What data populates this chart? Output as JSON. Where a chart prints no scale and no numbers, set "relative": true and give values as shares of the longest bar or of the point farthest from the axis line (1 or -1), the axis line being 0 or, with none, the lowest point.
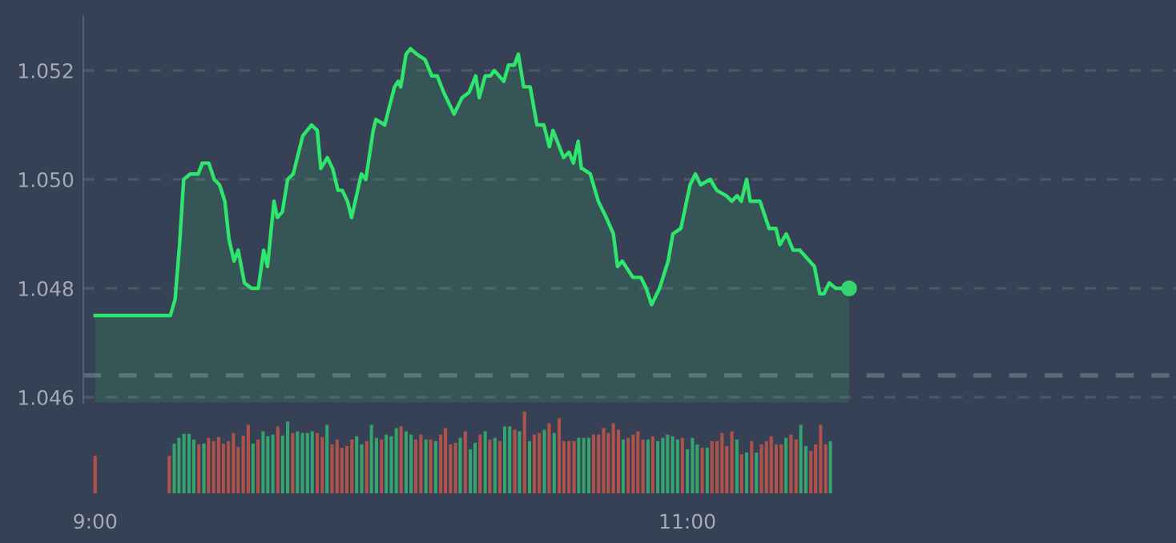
{
  "chart_data": [
    {
      "type": "area",
      "xlim": [
        8.96,
        12.65
      ],
      "ylim": [
        1.0459,
        1.053
      ],
      "yticks": [
        1.046,
        1.048,
        {
          "value": 1.05,
          "label": "1.050"
        },
        1.052
      ],
      "grid": "y",
      "tick_labels": "y",
      "line_style": "solid",
      "ref_lines": [
        {
          "axis": "y",
          "value": 1.0464,
          "line_style": "dashed",
          "color": "#5f6878"
        }
      ],
      "series": [
        {
          "type": "area",
          "color": "#2ee66b",
          "marker": "none",
          "x": [
            9.0,
            9.254,
            9.27,
            9.285,
            9.299,
            9.321,
            9.348,
            9.362,
            9.384,
            9.402,
            9.42,
            9.438,
            9.452,
            9.469,
            9.483,
            9.504,
            9.528,
            9.551,
            9.569,
            9.582,
            9.604,
            9.615,
            9.632,
            9.65,
            9.669,
            9.701,
            9.731,
            9.75,
            9.762,
            9.784,
            9.802,
            9.82,
            9.834,
            9.852,
            9.866,
            9.899,
            9.914,
            9.939,
            9.948,
            9.978,
            10.011,
            10.023,
            10.032,
            10.05,
            10.065,
            10.086,
            10.114,
            10.137,
            10.155,
            10.177,
            10.212,
            10.239,
            10.263,
            10.285,
            10.297,
            10.317,
            10.335,
            10.348,
            10.38,
            10.396,
            10.416,
            10.429,
            10.447,
            10.469,
            10.492,
            10.515,
            10.534,
            10.546,
            10.582,
            10.6,
            10.615,
            10.631,
            10.642,
            10.645,
            10.672,
            10.699,
            10.726,
            10.75,
            10.764,
            10.78,
            10.816,
            10.843,
            10.861,
            10.879,
            10.906,
            10.935,
            10.951,
            10.978,
            11.009,
            11.027,
            11.045,
            11.077,
            11.099,
            11.131,
            11.15,
            11.168,
            11.182,
            11.2,
            11.212,
            11.245,
            11.276,
            11.299,
            11.312,
            11.334,
            11.357,
            11.38,
            11.429,
            11.447,
            11.461,
            11.479,
            11.501,
            11.546
          ],
          "values": [
            1.0475,
            1.0475,
            1.0478,
            1.0488,
            1.05,
            1.0501,
            1.0501,
            1.0503,
            1.0503,
            1.05,
            1.0499,
            1.0496,
            1.0489,
            1.0485,
            1.0487,
            1.0481,
            1.048,
            1.048,
            1.0487,
            1.0484,
            1.0496,
            1.0493,
            1.0494,
            1.05,
            1.0501,
            1.0508,
            1.051,
            1.0509,
            1.0502,
            1.0504,
            1.0502,
            1.0498,
            1.0498,
            1.0496,
            1.0493,
            1.0501,
            1.05,
            1.0509,
            1.0511,
            1.051,
            1.0517,
            1.0518,
            1.0517,
            1.0523,
            1.0524,
            1.0523,
            1.0522,
            1.0519,
            1.0519,
            1.0516,
            1.0512,
            1.0515,
            1.0516,
            1.0519,
            1.0515,
            1.0519,
            1.0519,
            1.052,
            1.0518,
            1.0521,
            1.0521,
            1.0523,
            1.0517,
            1.0517,
            1.051,
            1.051,
            1.0506,
            1.0509,
            1.0504,
            1.0505,
            1.0503,
            1.0507,
            1.0502,
            1.0502,
            1.0501,
            1.0496,
            1.0493,
            1.049,
            1.0484,
            1.0485,
            1.0482,
            1.0482,
            1.048,
            1.0477,
            1.048,
            1.0485,
            1.049,
            1.0491,
            1.0499,
            1.0501,
            1.0499,
            1.05,
            1.0498,
            1.0497,
            1.0496,
            1.0497,
            1.0496,
            1.05,
            1.0496,
            1.0496,
            1.0491,
            1.0491,
            1.0488,
            1.049,
            1.0487,
            1.0487,
            1.0484,
            1.0479,
            1.0479,
            1.0481,
            1.048,
            1.048
          ]
        },
        {
          "type": "scatter",
          "color": "#34d46f",
          "marker": "circle",
          "x": [
            11.546
          ],
          "values": [
            1.048
          ]
        }
      ]
    },
    {
      "type": "bar",
      "relative": true,
      "xlim": [
        8.96,
        12.65
      ],
      "xticks": [
        {
          "value": 9,
          "label": "9:00"
        },
        {
          "value": 11,
          "label": "11:00"
        }
      ],
      "tick_labels": "x",
      "grid": false,
      "x": [
        9.0,
        9.25,
        9.267,
        9.283,
        9.3,
        9.317,
        9.333,
        9.35,
        9.367,
        9.383,
        9.4,
        9.417,
        9.433,
        9.45,
        9.467,
        9.483,
        9.5,
        9.517,
        9.533,
        9.55,
        9.567,
        9.583,
        9.6,
        9.617,
        9.633,
        9.65,
        9.667,
        9.683,
        9.7,
        9.717,
        9.733,
        9.75,
        9.767,
        9.783,
        9.8,
        9.817,
        9.833,
        9.85,
        9.867,
        9.883,
        9.9,
        9.917,
        9.933,
        9.95,
        9.967,
        9.983,
        10.0,
        10.017,
        10.033,
        10.05,
        10.067,
        10.083,
        10.1,
        10.117,
        10.133,
        10.15,
        10.167,
        10.183,
        10.2,
        10.217,
        10.233,
        10.25,
        10.267,
        10.283,
        10.3,
        10.317,
        10.333,
        10.35,
        10.367,
        10.383,
        10.4,
        10.417,
        10.433,
        10.45,
        10.467,
        10.483,
        10.5,
        10.517,
        10.533,
        10.55,
        10.567,
        10.583,
        10.6,
        10.617,
        10.633,
        10.65,
        10.667,
        10.683,
        10.7,
        10.717,
        10.733,
        10.75,
        10.767,
        10.783,
        10.8,
        10.817,
        10.833,
        10.85,
        10.867,
        10.883,
        10.9,
        10.917,
        10.933,
        10.95,
        10.967,
        10.983,
        11.0,
        11.017,
        11.033,
        11.05,
        11.067,
        11.083,
        11.1,
        11.117,
        11.133,
        11.15,
        11.167,
        11.183,
        11.2,
        11.217,
        11.233,
        11.25,
        11.267,
        11.283,
        11.3,
        11.317,
        11.333,
        11.35,
        11.367,
        11.383,
        11.4,
        11.417,
        11.433,
        11.45,
        11.467,
        11.483
      ],
      "values": [
        0.46,
        0.46,
        0.61,
        0.68,
        0.73,
        0.73,
        0.66,
        0.6,
        0.61,
        0.68,
        0.64,
        0.69,
        0.61,
        0.64,
        0.74,
        0.57,
        0.71,
        0.84,
        0.61,
        0.66,
        0.76,
        0.7,
        0.72,
        0.82,
        0.71,
        0.88,
        0.74,
        0.76,
        0.74,
        0.74,
        0.76,
        0.74,
        0.69,
        0.84,
        0.6,
        0.66,
        0.56,
        0.58,
        0.66,
        0.7,
        0.6,
        0.64,
        0.84,
        0.68,
        0.66,
        0.72,
        0.7,
        0.8,
        0.82,
        0.76,
        0.72,
        0.66,
        0.72,
        0.66,
        0.66,
        0.64,
        0.72,
        0.8,
        0.6,
        0.62,
        0.68,
        0.76,
        0.54,
        0.62,
        0.72,
        0.76,
        0.66,
        0.68,
        0.64,
        0.82,
        0.82,
        0.78,
        0.76,
        1,
        0.64,
        0.72,
        0.74,
        0.78,
        0.86,
        0.74,
        0.92,
        0.64,
        0.64,
        0.64,
        0.68,
        0.68,
        0.68,
        0.72,
        0.72,
        0.8,
        0.74,
        0.86,
        0.78,
        0.66,
        0.68,
        0.72,
        0.76,
        0.66,
        0.66,
        0.7,
        0.64,
        0.68,
        0.72,
        0.7,
        0.66,
        0.68,
        0.54,
        0.68,
        0.6,
        0.56,
        0.56,
        0.64,
        0.64,
        0.74,
        0.58,
        0.76,
        0.66,
        0.48,
        0.5,
        0.64,
        0.5,
        0.6,
        0.64,
        0.7,
        0.6,
        0.6,
        0.68,
        0.72,
        0.66,
        0.84,
        0.58,
        0.52,
        0.6,
        0.84,
        0.6,
        0.64
      ],
      "colors": [
        "#b0524a",
        "#b0524a",
        "#35a36e",
        "#35a36e",
        "#35a36e",
        "#35a36e",
        "#35a36e",
        "#b0524a",
        "#35a36e",
        "#b0524a",
        "#b0524a",
        "#b0524a",
        "#b0524a",
        "#b0524a",
        "#b0524a",
        "#b0524a",
        "#b0524a",
        "#b0524a",
        "#35a36e",
        "#b0524a",
        "#35a36e",
        "#35a36e",
        "#35a36e",
        "#b0524a",
        "#35a36e",
        "#35a36e",
        "#b0524a",
        "#35a36e",
        "#35a36e",
        "#35a36e",
        "#35a36e",
        "#b0524a",
        "#b0524a",
        "#35a36e",
        "#b0524a",
        "#b0524a",
        "#b0524a",
        "#b0524a",
        "#b0524a",
        "#35a36e",
        "#35a36e",
        "#b0524a",
        "#35a36e",
        "#35a36e",
        "#b0524a",
        "#35a36e",
        "#35a36e",
        "#35a36e",
        "#b0524a",
        "#35a36e",
        "#35a36e",
        "#b0524a",
        "#b0524a",
        "#35a36e",
        "#b0524a",
        "#35a36e",
        "#b0524a",
        "#b0524a",
        "#b0524a",
        "#b0524a",
        "#35a36e",
        "#b0524a",
        "#35a36e",
        "#35a36e",
        "#b0524a",
        "#35a36e",
        "#b0524a",
        "#35a36e",
        "#b0524a",
        "#35a36e",
        "#35a36e",
        "#b0524a",
        "#35a36e",
        "#b0524a",
        "#35a36e",
        "#b0524a",
        "#b0524a",
        "#35a36e",
        "#b0524a",
        "#35a36e",
        "#b0524a",
        "#b0524a",
        "#b0524a",
        "#b0524a",
        "#35a36e",
        "#35a36e",
        "#35a36e",
        "#b0524a",
        "#b0524a",
        "#b0524a",
        "#b0524a",
        "#b0524a",
        "#b0524a",
        "#35a36e",
        "#b0524a",
        "#b0524a",
        "#b0524a",
        "#b0524a",
        "#35a36e",
        "#b0524a",
        "#35a36e",
        "#35a36e",
        "#35a36e",
        "#35a36e",
        "#35a36e",
        "#b0524a",
        "#35a36e",
        "#35a36e",
        "#35a36e",
        "#b0524a",
        "#35a36e",
        "#b0524a",
        "#b0524a",
        "#b0524a",
        "#b0524a",
        "#b0524a",
        "#35a36e",
        "#b0524a",
        "#35a36e",
        "#b0524a",
        "#35a36e",
        "#b0524a",
        "#b0524a",
        "#b0524a",
        "#b0524a",
        "#b0524a",
        "#35a36e",
        "#b0524a",
        "#b0524a",
        "#35a36e",
        "#35a36e",
        "#b0524a",
        "#b0524a",
        "#b0524a",
        "#b0524a",
        "#35a36e"
      ]
    }
  ]
}
